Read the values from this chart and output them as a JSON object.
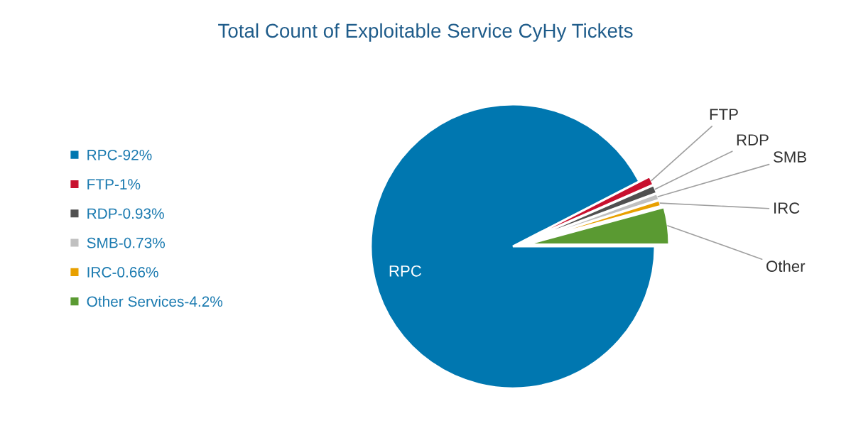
{
  "chart_data": {
    "type": "pie",
    "title": "Total Count of Exploitable Service CyHy Tickets",
    "categories": [
      "RPC-92%",
      "FTP-1%",
      "RDP-0.93%",
      "SMB-0.73%",
      "IRC-0.66%",
      "Other Services-4.2%"
    ],
    "values": [
      92,
      1,
      0.93,
      0.73,
      0.66,
      4.2
    ],
    "colors": [
      "#0077b0",
      "#c8102e",
      "#505050",
      "#c0c0c0",
      "#e8a000",
      "#5a9a32"
    ],
    "annotations": [
      "RPC",
      "FTP",
      "RDP",
      "SMB",
      "IRC",
      "Other"
    ],
    "legend": "left"
  }
}
